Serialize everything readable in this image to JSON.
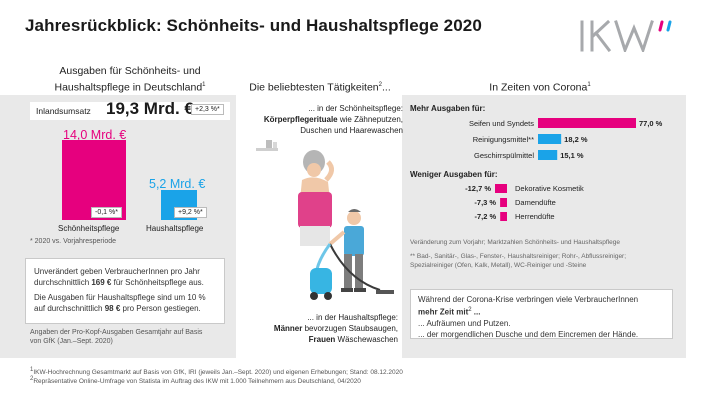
{
  "title": "Jahresrückblick: Schönheits- und Haushaltspflege 2020",
  "colors": {
    "pink": "#e6007e",
    "blue": "#1aa3e8",
    "gray_bg": "#e9e9e9",
    "logo_gray": "#a7a9ac"
  },
  "logo": {
    "text": "IKW",
    "quote_marks": "”"
  },
  "col1": {
    "heading_line1": "Ausgaben für Schönheits- und",
    "heading_line2": "Haushaltspflege in Deutschland",
    "heading_sup": "1",
    "inland_label": "Inlandsumsatz",
    "inland_value": "19,3 Mrd. €",
    "inland_change": "+2,3 %*",
    "beauty_value": "14,0 Mrd. €",
    "beauty_change": "-0,1 %*",
    "beauty_label": "Schönheitspflege",
    "household_value": "5,2 Mrd. €",
    "household_change": "+9,2 %*",
    "household_label": "Haushaltspflege",
    "footnote": "* 2020 vs. Vorjahresperiode",
    "box_text1a": "Unverändert geben VerbraucherInnen pro Jahr",
    "box_text1b": "durchschnittlich ",
    "box_text1c": "169 €",
    "box_text1d": " für Schönheitspflege aus.",
    "box_text2a": "Die Ausgaben für Haushaltspflege sind um 10 %",
    "box_text2b": "auf durchschnittlich ",
    "box_text2c": "98 €",
    "box_text2d": " pro Person gestiegen.",
    "source_line1": "Angaben der Pro-Kopf-Ausgaben Gesamtjahr auf Basis",
    "source_line2": "von GfK (Jan.–Sept. 2020)",
    "bar_values": {
      "beauty": 14.0,
      "household": 5.2
    }
  },
  "col2": {
    "heading": "Die beliebtesten Tätigkeiten",
    "heading_sup": "2",
    "heading_suffix": "...",
    "beauty_intro": "... in der Schönheitspflege:",
    "beauty_bold": "Körperpflegerituale",
    "beauty_rest1": " wie Zähneputzen,",
    "beauty_rest2": "Duschen und Haarewaschen",
    "household_intro": "... in der Haushaltspflege:",
    "household_bold1": "Männer",
    "household_rest1": " bevorzugen Staubsaugen,",
    "household_bold2": "Frauen",
    "household_rest2": " Wäschewaschen"
  },
  "col3": {
    "heading": "In Zeiten von Corona",
    "heading_sup": "1",
    "more_heading": "Mehr Ausgaben für:",
    "less_heading": "Weniger Ausgaben für:",
    "note": "Veränderung zum Vorjahr; Marktzahlen Schönheits- und Haushaltspflege",
    "footnote_line1": "** Bad-, Sanitär-, Glas-, Fenster-, Haushaltsreiniger; Rohr-, Abflussreiniger;",
    "footnote_line2": "Spezialreiniger (Ofen, Kalk, Metall), WC-Reiniger und -Steine",
    "box_line1": "Während der Corona-Krise verbringen viele VerbraucherInnen",
    "box_line2": "mehr Zeit mit",
    "box_sup": "2",
    "box_line2_suffix": " ...",
    "box_line3": "... Aufräumen und Putzen.",
    "box_line4": "... der morgendlichen Dusche und dem Eincremen der Hände."
  },
  "chart_data": {
    "type": "bar",
    "series": [
      {
        "categories": [
          "Seifen und Syndets",
          "Reinigungsmittel**",
          "Geschirrspülmittel"
        ],
        "values": [
          77.0,
          18.2,
          15.1
        ],
        "labels": [
          "77,0 %",
          "18,2 %",
          "15,1 %"
        ],
        "colors": [
          "#e6007e",
          "#1aa3e8",
          "#1aa3e8"
        ]
      },
      {
        "categories": [
          "Dekorative Kosmetik",
          "Damendüfte",
          "Herrendüfte"
        ],
        "values": [
          -12.7,
          -7.3,
          -7.2
        ],
        "labels": [
          "-12,7 %",
          "-7,3 %",
          "-7,2 %"
        ],
        "colors": [
          "#e6007e",
          "#e6007e",
          "#e6007e"
        ]
      }
    ]
  },
  "footer": {
    "line1": "IKW-Hochrechnung Gesamtmarkt auf Basis von GfK, IRI (jeweils Jan.–Sept. 2020) und eigenen Erhebungen; Stand: 08.12.2020",
    "line1_sup": "1",
    "line2": "Repräsentative Online-Umfrage von Statista im Auftrag des IKW mit 1.000 Teilnehmern aus Deutschland, 04/2020",
    "line2_sup": "2"
  }
}
